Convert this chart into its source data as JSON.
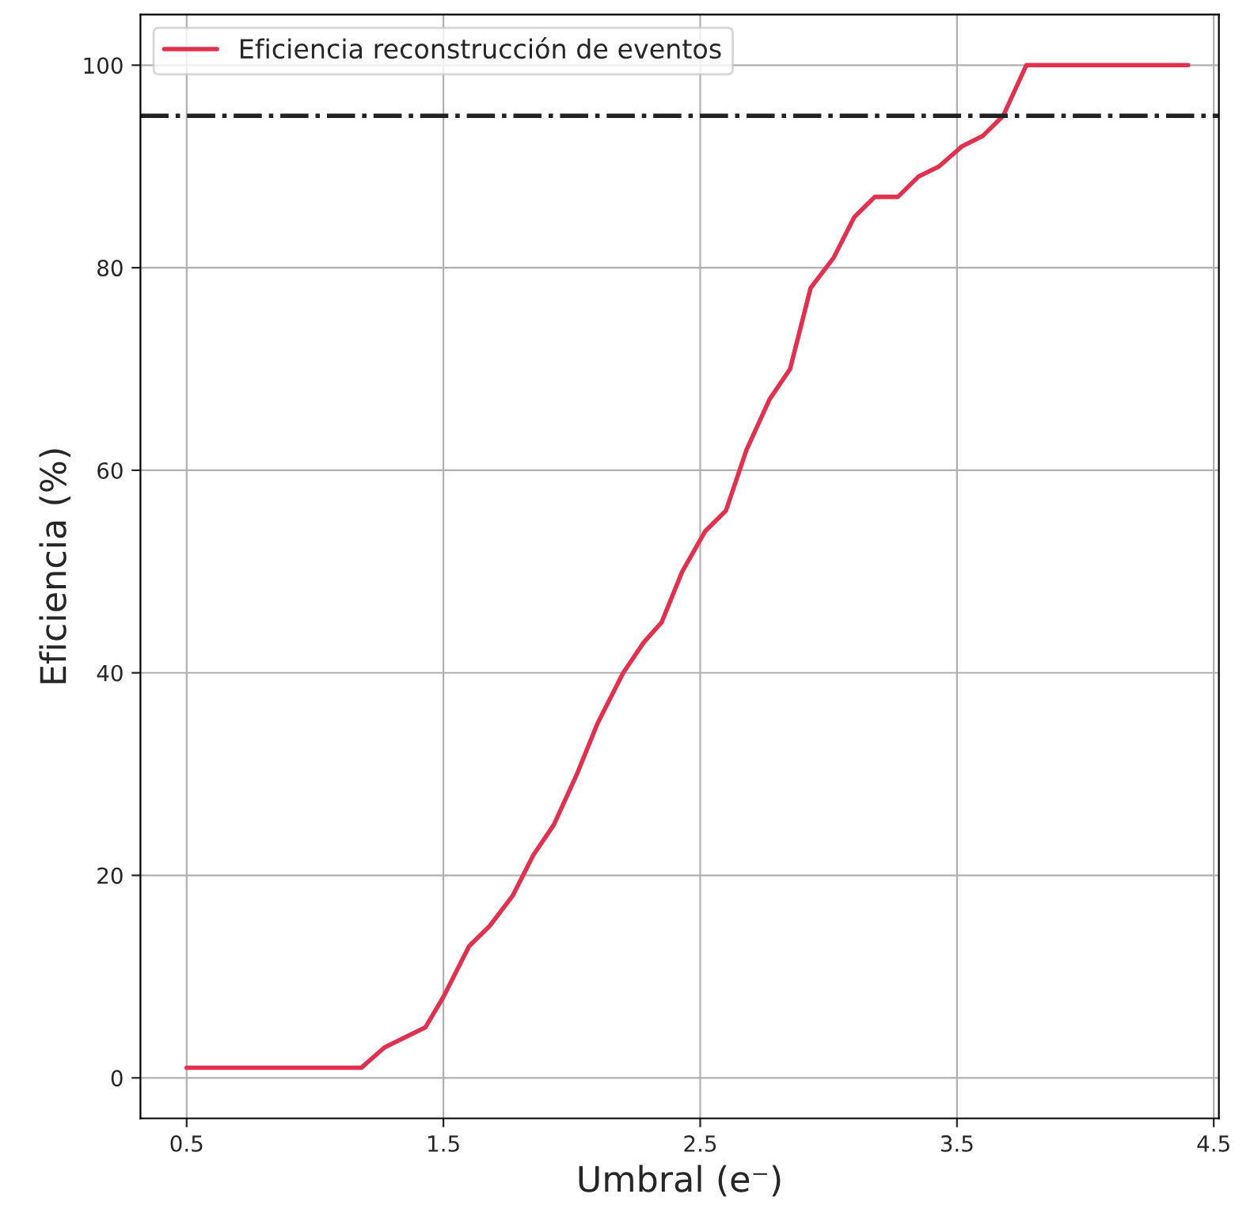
{
  "chart_data": {
    "type": "line",
    "xlabel": "Umbral (e⁻)",
    "ylabel": "Eficiencia (%)",
    "x": [
      0.5,
      1.18,
      1.27,
      1.43,
      1.5,
      1.6,
      1.68,
      1.77,
      1.85,
      1.93,
      2.02,
      2.1,
      2.2,
      2.28,
      2.35,
      2.43,
      2.52,
      2.6,
      2.68,
      2.77,
      2.85,
      2.93,
      3.02,
      3.1,
      3.18,
      3.27,
      3.35,
      3.43,
      3.52,
      3.6,
      3.68,
      3.77,
      4.4
    ],
    "series": [
      {
        "name": "Eficiencia reconstrucción de eventos",
        "color": "#e0314f",
        "values": [
          1,
          1,
          3,
          5,
          8,
          13,
          15,
          18,
          22,
          25,
          30,
          35,
          40,
          43,
          45,
          50,
          54,
          56,
          62,
          67,
          70,
          78,
          81,
          85,
          87,
          87,
          89,
          90,
          92,
          93,
          95,
          100,
          100
        ]
      }
    ],
    "xlim": [
      0.32,
      4.52
    ],
    "ylim": [
      -4,
      105
    ],
    "xticks": [
      0.5,
      1.5,
      2.5,
      3.5,
      4.5
    ],
    "yticks": [
      0,
      20,
      40,
      60,
      80,
      100
    ],
    "ref_lines": [
      {
        "axis": "y",
        "value": 95,
        "color": "#222222",
        "line_style": "dashdot"
      }
    ],
    "grid": true,
    "legend": "top left",
    "line_style": "solid",
    "marker": "none"
  }
}
